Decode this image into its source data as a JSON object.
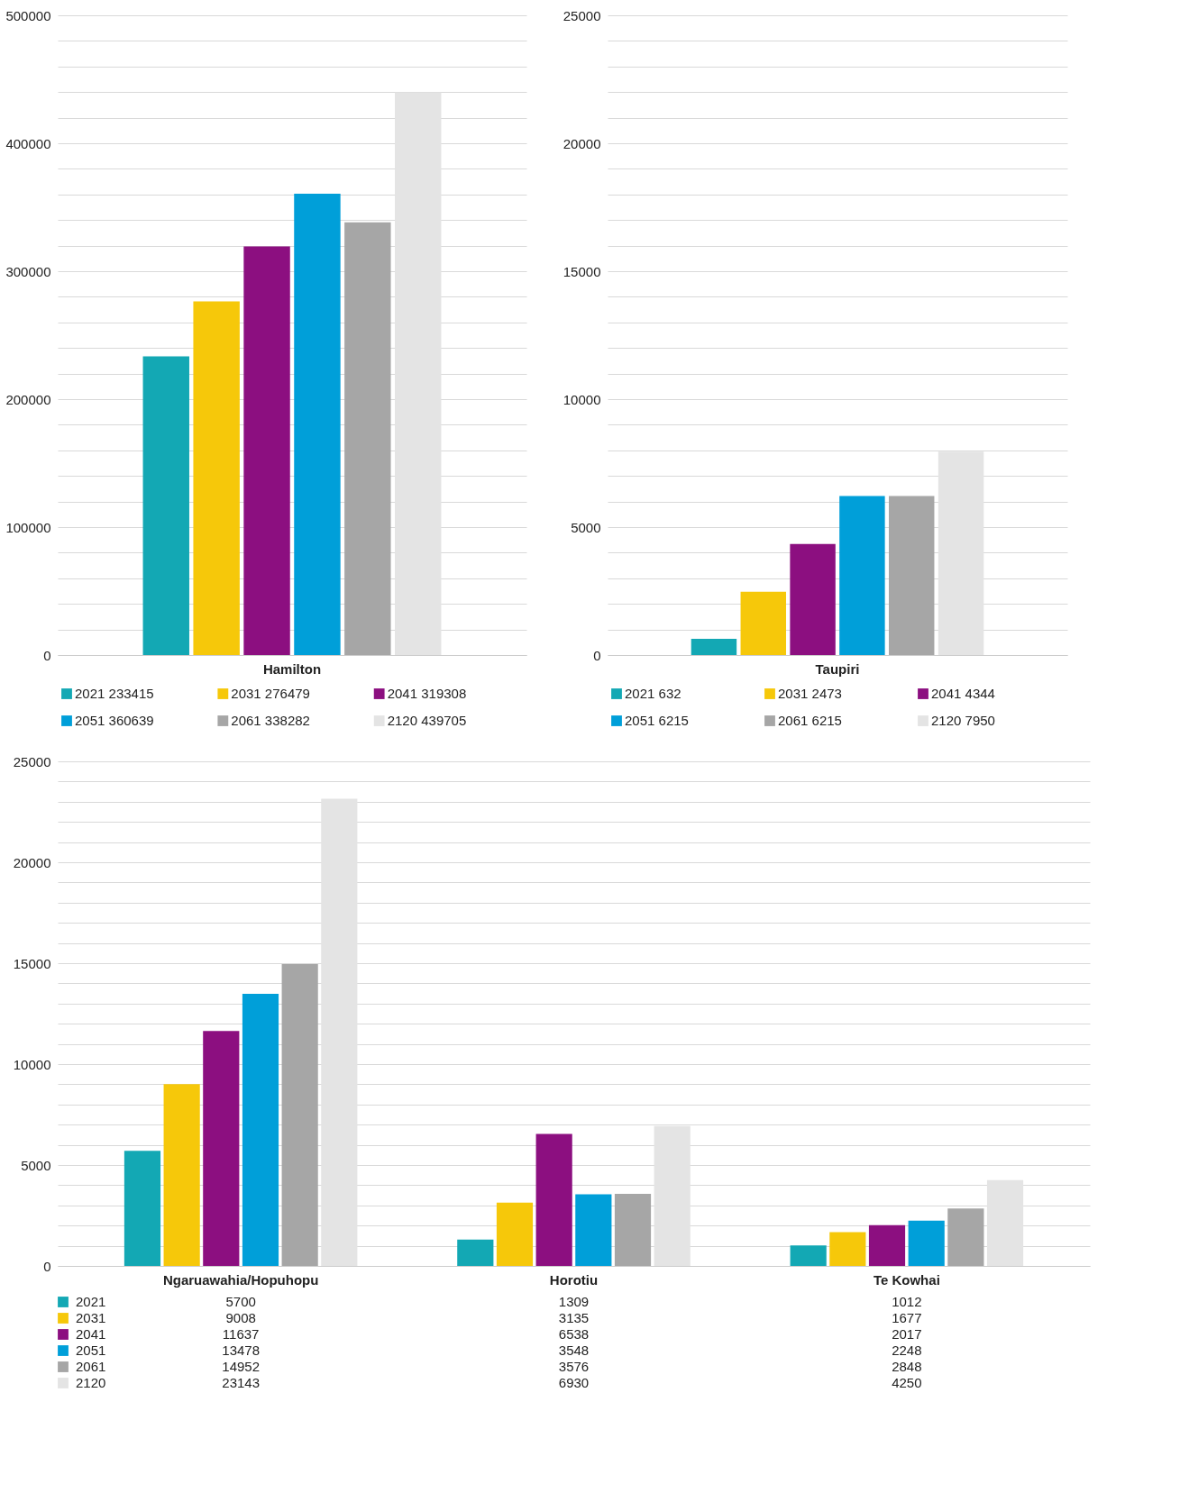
{
  "chart_data": [
    {
      "type": "bar",
      "categories": [
        "Hamilton"
      ],
      "series": [
        {
          "name": "2021  233415",
          "color": "#13a8b4",
          "values": [
            233415
          ]
        },
        {
          "name": "2031  276479",
          "color": "#f6c80a",
          "values": [
            276479
          ]
        },
        {
          "name": "2041  319308",
          "color": "#8c0f80",
          "values": [
            319308
          ]
        },
        {
          "name": "2051  360639",
          "color": "#009fd9",
          "values": [
            360639
          ]
        },
        {
          "name": "2061  338282",
          "color": "#a6a6a6",
          "values": [
            338282
          ]
        },
        {
          "name": "2120  439705",
          "color": "#e4e4e4",
          "values": [
            439705
          ]
        }
      ],
      "ylim": [
        0,
        500000
      ],
      "yticks": [
        0,
        {
          "value": 20000,
          "label": null
        },
        {
          "value": 40000,
          "label": null
        },
        {
          "value": 60000,
          "label": null
        },
        {
          "value": 80000,
          "label": null
        },
        100000,
        {
          "value": 120000,
          "label": null
        },
        {
          "value": 140000,
          "label": null
        },
        {
          "value": 160000,
          "label": null
        },
        {
          "value": 180000,
          "label": null
        },
        200000,
        {
          "value": 220000,
          "label": null
        },
        {
          "value": 240000,
          "label": null
        },
        {
          "value": 260000,
          "label": null
        },
        {
          "value": 280000,
          "label": null
        },
        300000,
        {
          "value": 320000,
          "label": null
        },
        {
          "value": 340000,
          "label": null
        },
        {
          "value": 360000,
          "label": null
        },
        {
          "value": 380000,
          "label": null
        },
        400000,
        {
          "value": 420000,
          "label": null
        },
        {
          "value": 440000,
          "label": null
        },
        {
          "value": 460000,
          "label": null
        },
        {
          "value": 480000,
          "label": null
        },
        500000
      ],
      "grid": "y",
      "legend": "bottom"
    },
    {
      "type": "bar",
      "categories": [
        "Taupiri"
      ],
      "series": [
        {
          "name": "2021  632",
          "color": "#13a8b4",
          "values": [
            632
          ]
        },
        {
          "name": "2031  2473",
          "color": "#f6c80a",
          "values": [
            2473
          ]
        },
        {
          "name": "2041  4344",
          "color": "#8c0f80",
          "values": [
            4344
          ]
        },
        {
          "name": "2051  6215",
          "color": "#009fd9",
          "values": [
            6215
          ]
        },
        {
          "name": "2061  6215",
          "color": "#a6a6a6",
          "values": [
            6215
          ]
        },
        {
          "name": "2120  7950",
          "color": "#e4e4e4",
          "values": [
            7950
          ]
        }
      ],
      "ylim": [
        0,
        25000
      ],
      "yticks": [
        0,
        {
          "value": 1000,
          "label": null
        },
        {
          "value": 2000,
          "label": null
        },
        {
          "value": 3000,
          "label": null
        },
        {
          "value": 4000,
          "label": null
        },
        5000,
        {
          "value": 6000,
          "label": null
        },
        {
          "value": 7000,
          "label": null
        },
        {
          "value": 8000,
          "label": null
        },
        {
          "value": 9000,
          "label": null
        },
        10000,
        {
          "value": 11000,
          "label": null
        },
        {
          "value": 12000,
          "label": null
        },
        {
          "value": 13000,
          "label": null
        },
        {
          "value": 14000,
          "label": null
        },
        15000,
        {
          "value": 16000,
          "label": null
        },
        {
          "value": 17000,
          "label": null
        },
        {
          "value": 18000,
          "label": null
        },
        {
          "value": 19000,
          "label": null
        },
        20000,
        {
          "value": 21000,
          "label": null
        },
        {
          "value": 22000,
          "label": null
        },
        {
          "value": 23000,
          "label": null
        },
        {
          "value": 24000,
          "label": null
        },
        25000
      ],
      "grid": "y",
      "legend": "bottom"
    },
    {
      "type": "bar",
      "categories": [
        "Ngaruawahia/Hopuhopu",
        "Horotiu",
        "Te Kowhai"
      ],
      "series": [
        {
          "name": "2021",
          "color": "#13a8b4",
          "values": [
            5700,
            1309,
            1012
          ]
        },
        {
          "name": "2031",
          "color": "#f6c80a",
          "values": [
            9008,
            3135,
            1677
          ]
        },
        {
          "name": "2041",
          "color": "#8c0f80",
          "values": [
            11637,
            6538,
            2017
          ]
        },
        {
          "name": "2051",
          "color": "#009fd9",
          "values": [
            13478,
            3548,
            2248
          ]
        },
        {
          "name": "2061",
          "color": "#a6a6a6",
          "values": [
            14952,
            3576,
            2848
          ]
        },
        {
          "name": "2120",
          "color": "#e4e4e4",
          "values": [
            23143,
            6930,
            4250
          ]
        }
      ],
      "ylim": [
        0,
        25000
      ],
      "yticks": [
        0,
        {
          "value": 1000,
          "label": null
        },
        {
          "value": 2000,
          "label": null
        },
        {
          "value": 3000,
          "label": null
        },
        {
          "value": 4000,
          "label": null
        },
        5000,
        {
          "value": 6000,
          "label": null
        },
        {
          "value": 7000,
          "label": null
        },
        {
          "value": 8000,
          "label": null
        },
        {
          "value": 9000,
          "label": null
        },
        10000,
        {
          "value": 11000,
          "label": null
        },
        {
          "value": 12000,
          "label": null
        },
        {
          "value": 13000,
          "label": null
        },
        {
          "value": 14000,
          "label": null
        },
        15000,
        {
          "value": 16000,
          "label": null
        },
        {
          "value": 17000,
          "label": null
        },
        {
          "value": 18000,
          "label": null
        },
        {
          "value": 19000,
          "label": null
        },
        20000,
        {
          "value": 21000,
          "label": null
        },
        {
          "value": 22000,
          "label": null
        },
        {
          "value": 23000,
          "label": null
        },
        {
          "value": 24000,
          "label": null
        },
        25000
      ],
      "grid": "y",
      "legend": "bottom",
      "data_labels": true
    }
  ]
}
